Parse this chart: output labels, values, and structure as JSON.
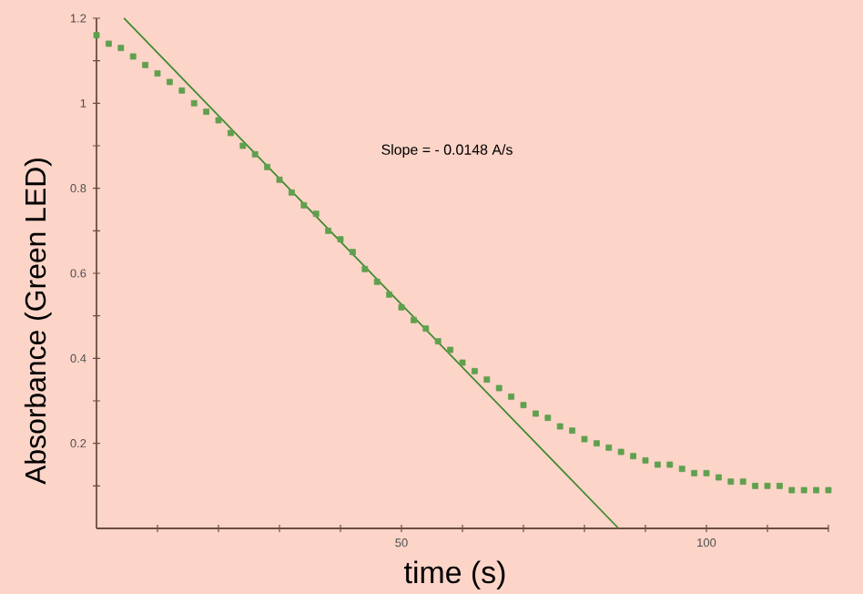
{
  "chart_data": {
    "type": "scatter",
    "xlabel": "time (s)",
    "ylabel": "Absorbance (Green LED)",
    "annotations": [
      "Slope = - 0.0148 A/s"
    ],
    "xlim": [
      0,
      120
    ],
    "ylim": [
      0,
      1.2
    ],
    "xticks": [
      {
        "value": 10,
        "label": null
      },
      {
        "value": 20,
        "label": null
      },
      {
        "value": 30,
        "label": null
      },
      {
        "value": 40,
        "label": null
      },
      50,
      {
        "value": 60,
        "label": null
      },
      {
        "value": 70,
        "label": null
      },
      {
        "value": 80,
        "label": null
      },
      {
        "value": 90,
        "label": null
      },
      100,
      {
        "value": 110,
        "label": null
      },
      {
        "value": 120,
        "label": null
      }
    ],
    "yticks": [
      {
        "value": 0.1,
        "label": null
      },
      0.2,
      {
        "value": 0.3,
        "label": null
      },
      0.4,
      {
        "value": 0.5,
        "label": null
      },
      0.6,
      {
        "value": 0.7,
        "label": null
      },
      0.8,
      {
        "value": 0.9,
        "label": null
      },
      1,
      {
        "value": 1.1,
        "label": null
      },
      1.2
    ],
    "marker": "square",
    "series": [
      {
        "color": "#5fa04e",
        "x": [
          0,
          2,
          4,
          6,
          8,
          10,
          12,
          14,
          16,
          18,
          20,
          22,
          24,
          26,
          28,
          30,
          32,
          34,
          36,
          38,
          40,
          42,
          44,
          46,
          48,
          50,
          52,
          54,
          56,
          58,
          60,
          62,
          64,
          66,
          68,
          70,
          72,
          74,
          76,
          78,
          80,
          82,
          84,
          86,
          88,
          90,
          92,
          94,
          96,
          98,
          100,
          102,
          104,
          106,
          108,
          110,
          112,
          114,
          116,
          118,
          120
        ],
        "values": [
          1.16,
          1.14,
          1.13,
          1.11,
          1.09,
          1.07,
          1.05,
          1.03,
          1.0,
          0.98,
          0.96,
          0.93,
          0.9,
          0.88,
          0.85,
          0.82,
          0.79,
          0.76,
          0.74,
          0.7,
          0.68,
          0.65,
          0.61,
          0.58,
          0.55,
          0.52,
          0.49,
          0.47,
          0.44,
          0.42,
          0.39,
          0.37,
          0.35,
          0.33,
          0.31,
          0.29,
          0.27,
          0.26,
          0.24,
          0.23,
          0.21,
          0.2,
          0.19,
          0.18,
          0.17,
          0.16,
          0.15,
          0.15,
          0.14,
          0.13,
          0.13,
          0.12,
          0.11,
          0.11,
          0.1,
          0.1,
          0.1,
          0.09,
          0.09,
          0.09,
          0.09
        ]
      },
      {
        "type": "line",
        "color": "#3d8a30",
        "marker": "none",
        "line_style": "solid",
        "x": [
          4.5,
          85.6
        ],
        "values": [
          1.2,
          0
        ]
      }
    ]
  }
}
